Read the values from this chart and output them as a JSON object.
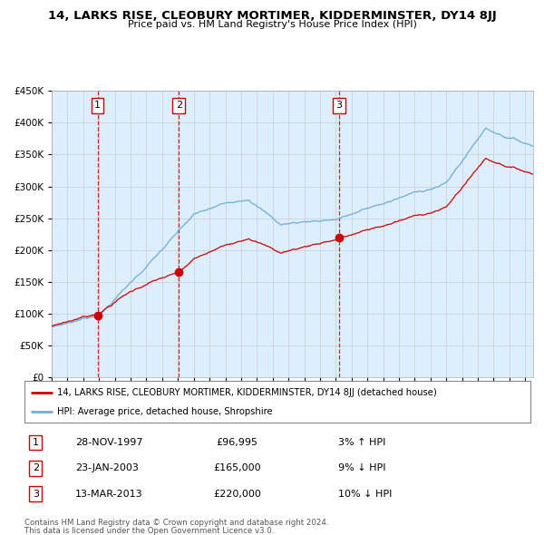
{
  "title": "14, LARKS RISE, CLEOBURY MORTIMER, KIDDERMINSTER, DY14 8JJ",
  "subtitle": "Price paid vs. HM Land Registry's House Price Index (HPI)",
  "legend_line1": "14, LARKS RISE, CLEOBURY MORTIMER, KIDDERMINSTER, DY14 8JJ (detached house)",
  "legend_line2": "HPI: Average price, detached house, Shropshire",
  "footnote1": "Contains HM Land Registry data © Crown copyright and database right 2024.",
  "footnote2": "This data is licensed under the Open Government Licence v3.0.",
  "transactions": [
    {
      "num": 1,
      "date": "28-NOV-1997",
      "price": 96995,
      "pct": "3%",
      "dir": "↑"
    },
    {
      "num": 2,
      "date": "23-JAN-2003",
      "price": 165000,
      "pct": "9%",
      "dir": "↓"
    },
    {
      "num": 3,
      "date": "13-MAR-2013",
      "price": 220000,
      "pct": "10%",
      "dir": "↓"
    }
  ],
  "transaction_dates_decimal": [
    1997.91,
    2003.06,
    2013.21
  ],
  "transaction_prices": [
    96995,
    165000,
    220000
  ],
  "hpi_color": "#6baed6",
  "price_color": "#cc0000",
  "background_color": "#ddeeff",
  "ylim": [
    0,
    450000
  ],
  "xlim_start": 1995.0,
  "xlim_end": 2025.5,
  "dashed_line_dates": [
    1997.91,
    2003.06,
    2013.21
  ]
}
